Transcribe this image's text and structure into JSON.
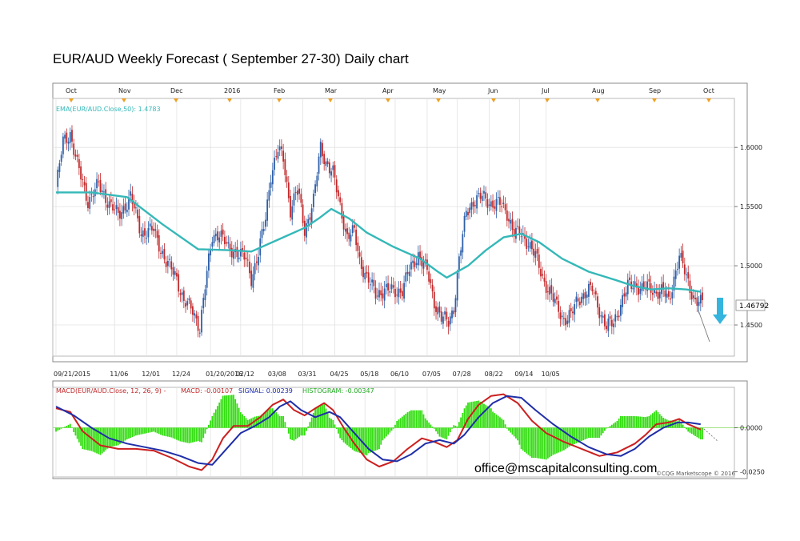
{
  "doc_title": "EUR/AUD Weekly Forecast ( September 27-30) Daily chart",
  "colors": {
    "up": "#2e5fa8",
    "down": "#c0292b",
    "ema": "#35b8b8",
    "macd": "#cc1f1f",
    "signal": "#1f2ea8",
    "histogram": "#33dd11",
    "arrow": "#35b5de",
    "event_marker": "#f0a020"
  },
  "chart_data": [
    {
      "type": "candlestick",
      "title": "",
      "indicator_label": "EMA(EUR/AUD.Close,50): 1.4783",
      "month_labels": [
        "Oct",
        "Nov",
        "Dec",
        "2016",
        "Feb",
        "Mar",
        "Apr",
        "May",
        "Jun",
        "Jul",
        "Aug",
        "Sep",
        "Oct"
      ],
      "date_labels": [
        "09/21/2015",
        "11/06",
        "12/01",
        "12/24",
        "01/20/2016",
        "02/12",
        "03/08",
        "03/31",
        "04/25",
        "05/18",
        "06/10",
        "07/05",
        "07/28",
        "08/22",
        "09/14",
        "10/05"
      ],
      "y_ticks": [
        "1.6000",
        "1.5500",
        "1.5000",
        "1.4500"
      ],
      "y_tick_values": [
        1.6,
        1.55,
        1.5,
        1.45
      ],
      "ylim": [
        1.425,
        1.64
      ],
      "last_price": "1.46792",
      "price_path": [
        [
          0,
          1.565
        ],
        [
          4,
          1.605
        ],
        [
          8,
          1.612
        ],
        [
          12,
          1.585
        ],
        [
          18,
          1.555
        ],
        [
          24,
          1.568
        ],
        [
          30,
          1.553
        ],
        [
          35,
          1.542
        ],
        [
          42,
          1.558
        ],
        [
          48,
          1.528
        ],
        [
          55,
          1.53
        ],
        [
          62,
          1.503
        ],
        [
          68,
          1.49
        ],
        [
          72,
          1.47
        ],
        [
          77,
          1.462
        ],
        [
          81,
          1.448
        ],
        [
          84,
          1.482
        ],
        [
          88,
          1.525
        ],
        [
          92,
          1.528
        ],
        [
          97,
          1.514
        ],
        [
          101,
          1.513
        ],
        [
          107,
          1.505
        ],
        [
          110,
          1.49
        ],
        [
          114,
          1.51
        ],
        [
          118,
          1.54
        ],
        [
          121,
          1.578
        ],
        [
          125,
          1.598
        ],
        [
          128,
          1.59
        ],
        [
          132,
          1.548
        ],
        [
          136,
          1.565
        ],
        [
          140,
          1.53
        ],
        [
          145,
          1.555
        ],
        [
          149,
          1.6
        ],
        [
          152,
          1.588
        ],
        [
          156,
          1.578
        ],
        [
          160,
          1.55
        ],
        [
          164,
          1.525
        ],
        [
          168,
          1.528
        ],
        [
          171,
          1.505
        ],
        [
          175,
          1.49
        ],
        [
          180,
          1.476
        ],
        [
          185,
          1.48
        ],
        [
          190,
          1.478
        ],
        [
          195,
          1.48
        ],
        [
          199,
          1.496
        ],
        [
          204,
          1.51
        ],
        [
          209,
          1.495
        ],
        [
          213,
          1.47
        ],
        [
          217,
          1.456
        ],
        [
          221,
          1.452
        ],
        [
          224,
          1.465
        ],
        [
          227,
          1.505
        ],
        [
          231,
          1.545
        ],
        [
          235,
          1.555
        ],
        [
          240,
          1.558
        ],
        [
          245,
          1.553
        ],
        [
          250,
          1.552
        ],
        [
          254,
          1.545
        ],
        [
          258,
          1.528
        ],
        [
          262,
          1.526
        ],
        [
          266,
          1.52
        ],
        [
          270,
          1.508
        ],
        [
          274,
          1.49
        ],
        [
          278,
          1.478
        ],
        [
          282,
          1.465
        ],
        [
          286,
          1.455
        ],
        [
          290,
          1.458
        ],
        [
          294,
          1.472
        ],
        [
          298,
          1.477
        ],
        [
          302,
          1.48
        ],
        [
          306,
          1.463
        ],
        [
          310,
          1.448
        ],
        [
          314,
          1.452
        ],
        [
          318,
          1.468
        ],
        [
          322,
          1.482
        ],
        [
          326,
          1.485
        ],
        [
          330,
          1.48
        ],
        [
          334,
          1.482
        ],
        [
          338,
          1.478
        ],
        [
          342,
          1.478
        ],
        [
          345,
          1.47
        ],
        [
          348,
          1.49
        ],
        [
          351,
          1.508
        ],
        [
          354,
          1.495
        ],
        [
          357,
          1.482
        ],
        [
          360,
          1.47
        ],
        [
          363,
          1.468
        ]
      ],
      "ema_path": [
        [
          0,
          1.562
        ],
        [
          20,
          1.562
        ],
        [
          40,
          1.558
        ],
        [
          60,
          1.535
        ],
        [
          80,
          1.514
        ],
        [
          100,
          1.513
        ],
        [
          110,
          1.512
        ],
        [
          125,
          1.522
        ],
        [
          140,
          1.532
        ],
        [
          148,
          1.54
        ],
        [
          155,
          1.548
        ],
        [
          165,
          1.54
        ],
        [
          175,
          1.528
        ],
        [
          190,
          1.516
        ],
        [
          205,
          1.506
        ],
        [
          215,
          1.495
        ],
        [
          220,
          1.49
        ],
        [
          232,
          1.5
        ],
        [
          242,
          1.513
        ],
        [
          252,
          1.524
        ],
        [
          262,
          1.527
        ],
        [
          272,
          1.52
        ],
        [
          285,
          1.506
        ],
        [
          300,
          1.495
        ],
        [
          315,
          1.488
        ],
        [
          325,
          1.483
        ],
        [
          335,
          1.48
        ],
        [
          345,
          1.481
        ],
        [
          355,
          1.48
        ],
        [
          363,
          1.478
        ]
      ]
    },
    {
      "type": "line",
      "title": "",
      "indicator_label": "MACD(EUR/AUD.Close, 12, 26, 9) -",
      "macd_label": "MACD: -0.00107",
      "signal_label": "SIGNAL: 0.00239",
      "histogram_label": "HISTOGRAM: -0.00347",
      "y_ticks": [
        "0.0000",
        "-0.0250"
      ],
      "y_tick_values": [
        0,
        -0.025
      ],
      "ylim": [
        -0.027,
        0.022
      ],
      "series": [
        {
          "name": "MACD",
          "points": [
            [
              0,
              0.011
            ],
            [
              8,
              0.009
            ],
            [
              15,
              -0.002
            ],
            [
              25,
              -0.01
            ],
            [
              35,
              -0.012
            ],
            [
              45,
              -0.012
            ],
            [
              55,
              -0.013
            ],
            [
              65,
              -0.017
            ],
            [
              75,
              -0.022
            ],
            [
              82,
              -0.024
            ],
            [
              88,
              -0.018
            ],
            [
              94,
              -0.006
            ],
            [
              100,
              0.001
            ],
            [
              108,
              0.001
            ],
            [
              115,
              0.006
            ],
            [
              122,
              0.013
            ],
            [
              128,
              0.016
            ],
            [
              134,
              0.01
            ],
            [
              140,
              0.007
            ],
            [
              146,
              0.011
            ],
            [
              151,
              0.014
            ],
            [
              156,
              0.01
            ],
            [
              162,
              0.0
            ],
            [
              168,
              -0.009
            ],
            [
              175,
              -0.018
            ],
            [
              182,
              -0.022
            ],
            [
              190,
              -0.019
            ],
            [
              198,
              -0.012
            ],
            [
              206,
              -0.006
            ],
            [
              213,
              -0.008
            ],
            [
              220,
              -0.011
            ],
            [
              226,
              -0.007
            ],
            [
              232,
              0.005
            ],
            [
              238,
              0.013
            ],
            [
              245,
              0.018
            ],
            [
              252,
              0.019
            ],
            [
              260,
              0.014
            ],
            [
              268,
              0.004
            ],
            [
              276,
              -0.003
            ],
            [
              286,
              -0.008
            ],
            [
              296,
              -0.012
            ],
            [
              306,
              -0.016
            ],
            [
              316,
              -0.014
            ],
            [
              326,
              -0.009
            ],
            [
              332,
              -0.004
            ],
            [
              338,
              0.002
            ],
            [
              345,
              0.003
            ],
            [
              351,
              0.005
            ],
            [
              356,
              0.002
            ],
            [
              363,
              -0.001
            ]
          ]
        },
        {
          "name": "SIGNAL",
          "points": [
            [
              0,
              0.012
            ],
            [
              10,
              0.007
            ],
            [
              20,
              0.0
            ],
            [
              30,
              -0.006
            ],
            [
              40,
              -0.009
            ],
            [
              50,
              -0.011
            ],
            [
              60,
              -0.013
            ],
            [
              70,
              -0.016
            ],
            [
              80,
              -0.02
            ],
            [
              88,
              -0.021
            ],
            [
              96,
              -0.012
            ],
            [
              104,
              -0.003
            ],
            [
              112,
              0.001
            ],
            [
              120,
              0.006
            ],
            [
              126,
              0.012
            ],
            [
              132,
              0.015
            ],
            [
              138,
              0.01
            ],
            [
              146,
              0.006
            ],
            [
              154,
              0.009
            ],
            [
              160,
              0.006
            ],
            [
              168,
              -0.003
            ],
            [
              176,
              -0.012
            ],
            [
              184,
              -0.018
            ],
            [
              192,
              -0.019
            ],
            [
              200,
              -0.015
            ],
            [
              208,
              -0.009
            ],
            [
              216,
              -0.007
            ],
            [
              224,
              -0.009
            ],
            [
              230,
              -0.004
            ],
            [
              238,
              0.006
            ],
            [
              246,
              0.014
            ],
            [
              254,
              0.018
            ],
            [
              262,
              0.017
            ],
            [
              270,
              0.01
            ],
            [
              280,
              0.002
            ],
            [
              290,
              -0.005
            ],
            [
              300,
              -0.011
            ],
            [
              310,
              -0.015
            ],
            [
              318,
              -0.016
            ],
            [
              326,
              -0.012
            ],
            [
              334,
              -0.005
            ],
            [
              342,
              0.0
            ],
            [
              350,
              0.003
            ],
            [
              356,
              0.003
            ],
            [
              363,
              0.002
            ]
          ]
        }
      ]
    }
  ],
  "watermark_email": "office@mscapitalconsulting.com",
  "copyright": "©CQG Marketscope © 2016"
}
